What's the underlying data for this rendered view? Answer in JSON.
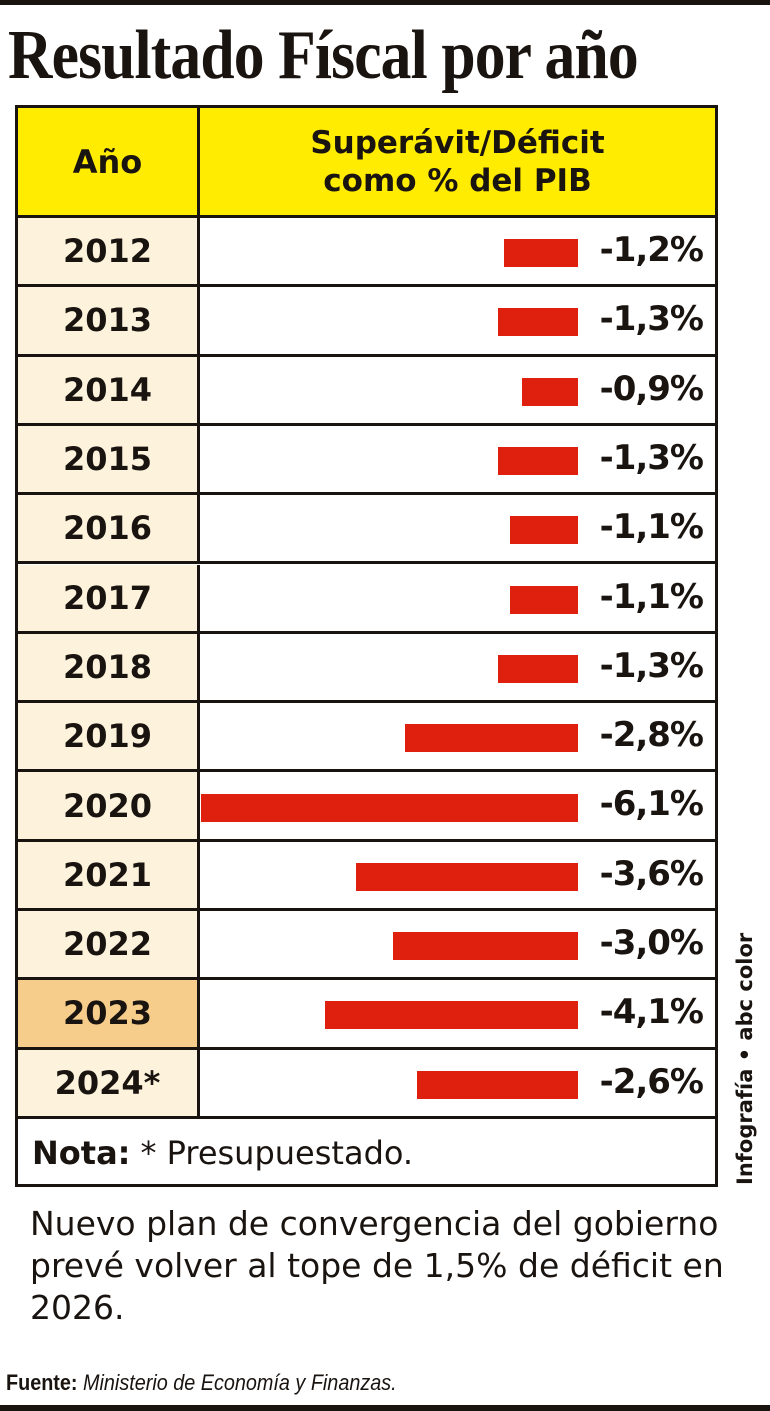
{
  "title": "Resultado Físcal por año",
  "header": {
    "year": "Año",
    "value_line1": "Superávit/Déficit",
    "value_line2": "como % del PIB"
  },
  "chart_data": {
    "type": "bar",
    "title": "Resultado Físcal por año",
    "xlabel": "Año",
    "ylabel": "Superávit/Déficit como % del PIB",
    "categories": [
      "2012",
      "2013",
      "2014",
      "2015",
      "2016",
      "2017",
      "2018",
      "2019",
      "2020",
      "2021",
      "2022",
      "2023",
      "2024*"
    ],
    "values": [
      -1.2,
      -1.3,
      -0.9,
      -1.3,
      -1.1,
      -1.1,
      -1.3,
      -2.8,
      -6.1,
      -3.6,
      -3.0,
      -4.1,
      -2.6
    ],
    "labels": [
      "-1,2%",
      "-1,3%",
      "-0,9%",
      "-1,3%",
      "-1,1%",
      "-1,1%",
      "-1,3%",
      "-2,8%",
      "-6,1%",
      "-3,6%",
      "-3,0%",
      "-4,1%",
      "-2,6%"
    ],
    "highlight": "2023",
    "bar_color": "#e0200e",
    "orientation": "horizontal"
  },
  "note": {
    "label": "Nota:",
    "text": "* Presupuestado."
  },
  "body_text": "Nuevo plan de convergencia del gobierno prevé volver al tope de 1,5% de déficit en 2026.",
  "credit": "Infografía • abc color",
  "source": {
    "label": "Fuente:",
    "text": "Ministerio de Economía y Finanzas."
  }
}
